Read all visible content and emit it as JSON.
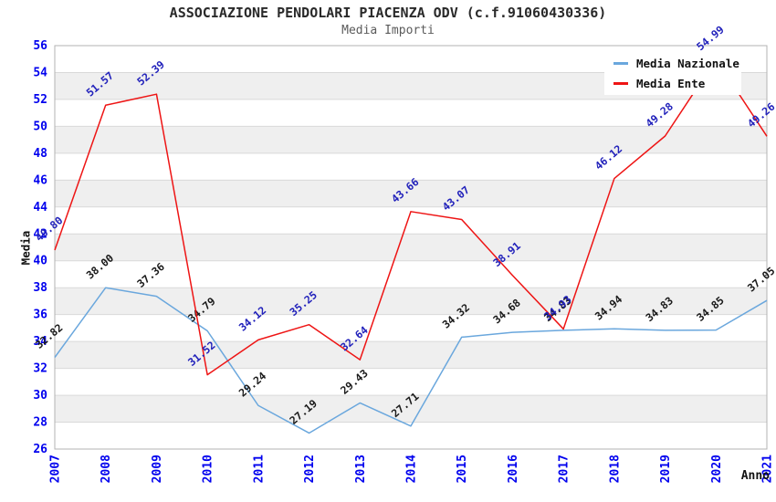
{
  "chart_data": {
    "type": "line",
    "title": "ASSOCIAZIONE PENDOLARI PIACENZA ODV (c.f.91060430336)",
    "subtitle": "Media Importi",
    "xlabel": "Anno",
    "ylabel": "Media",
    "x": [
      2007,
      2008,
      2009,
      2010,
      2011,
      2012,
      2013,
      2014,
      2015,
      2016,
      2017,
      2018,
      2019,
      2020,
      2021
    ],
    "ylim": [
      26,
      56
    ],
    "ytick_step": 2,
    "grid": true,
    "band_fill": true,
    "legend_position": "top-right",
    "series": [
      {
        "name": "Media Nazionale",
        "color": "#6aa7dd",
        "label_color": "#1a1a1a",
        "values": [
          32.82,
          38.0,
          37.36,
          34.79,
          29.24,
          27.19,
          29.43,
          27.71,
          34.32,
          34.68,
          34.83,
          34.94,
          34.83,
          34.85,
          37.05
        ]
      },
      {
        "name": "Media Ente",
        "color": "#ee1414",
        "label_color": "#2222bb",
        "values": [
          40.8,
          51.57,
          52.39,
          31.52,
          34.12,
          35.25,
          32.64,
          43.66,
          43.07,
          38.91,
          34.93,
          46.12,
          49.28,
          54.99,
          49.26
        ]
      }
    ]
  },
  "colors": {
    "axis_text": "#0000ee",
    "band": "#efefef",
    "grid": "#d9d9d9",
    "border": "#b3b3b3",
    "title": "#2a2a2a",
    "subtitle": "#5a5a5a",
    "legend_bg": "#ffffff"
  }
}
